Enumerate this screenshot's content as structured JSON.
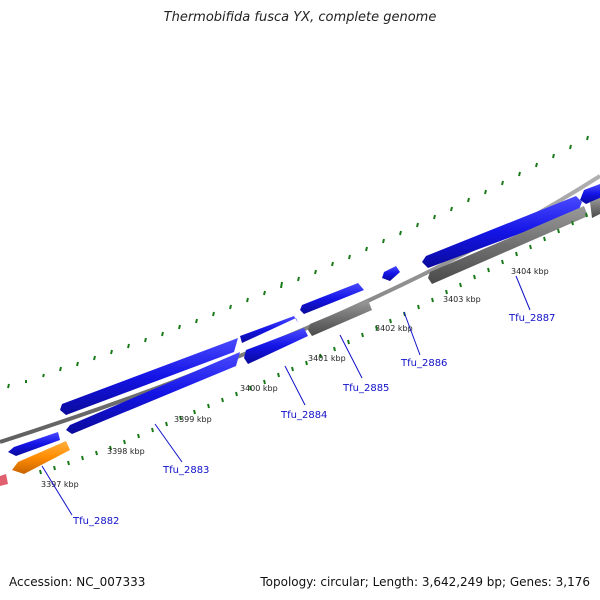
{
  "header": {
    "title": "Thermobifida fusca YX, complete genome"
  },
  "footer": {
    "accession": "Accession: NC_007333",
    "summary": "Topology: circular; Length: 3,642,249 bp; Genes: 3,176"
  },
  "colors": {
    "forward_cds": "#1414e6",
    "reverse_cds": "#707070",
    "rna": "#ff8c00",
    "backbone": "#808080",
    "ticks": "#1a7a1a",
    "label": "#1010c8"
  },
  "ruler": {
    "labels": [
      "3397 kbp",
      "3398 kbp",
      "3399 kbp",
      "3400 kbp",
      "3401 kbp",
      "3402 kbp",
      "3403 kbp",
      "3404 kbp"
    ]
  },
  "genes": {
    "labels": [
      "Tfu_2882",
      "Tfu_2883",
      "Tfu_2884",
      "Tfu_2885",
      "Tfu_2886",
      "Tfu_2887"
    ]
  }
}
